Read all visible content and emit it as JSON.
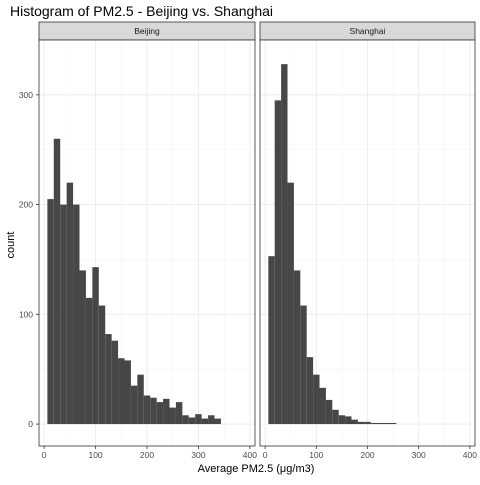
{
  "chart_data": {
    "type": "bar",
    "subtype": "histogram-faceted",
    "title": "Histogram of PM2.5 - Beijing vs. Shanghai",
    "xlabel": "Average PM2.5 (μg/m3)",
    "ylabel": "count",
    "xlim": [
      -10,
      410
    ],
    "ylim": [
      -20,
      350
    ],
    "x_ticks": [
      0,
      100,
      200,
      300,
      400
    ],
    "y_ticks": [
      0,
      100,
      200,
      300
    ],
    "bin_width": 12.5,
    "bar_color": "#474747",
    "grid": true,
    "facets": [
      {
        "name": "Beijing",
        "bins_start": 6.25,
        "counts": [
          205,
          260,
          200,
          220,
          200,
          140,
          115,
          143,
          108,
          82,
          76,
          60,
          58,
          35,
          45,
          26,
          24,
          20,
          23,
          15,
          20,
          8,
          6,
          9,
          5,
          8,
          5
        ]
      },
      {
        "name": "Shanghai",
        "bins_start": 6.25,
        "counts": [
          153,
          295,
          328,
          220,
          140,
          108,
          61,
          45,
          33,
          22,
          13,
          8,
          7,
          4,
          2,
          2,
          1,
          1,
          1,
          1
        ]
      }
    ]
  }
}
